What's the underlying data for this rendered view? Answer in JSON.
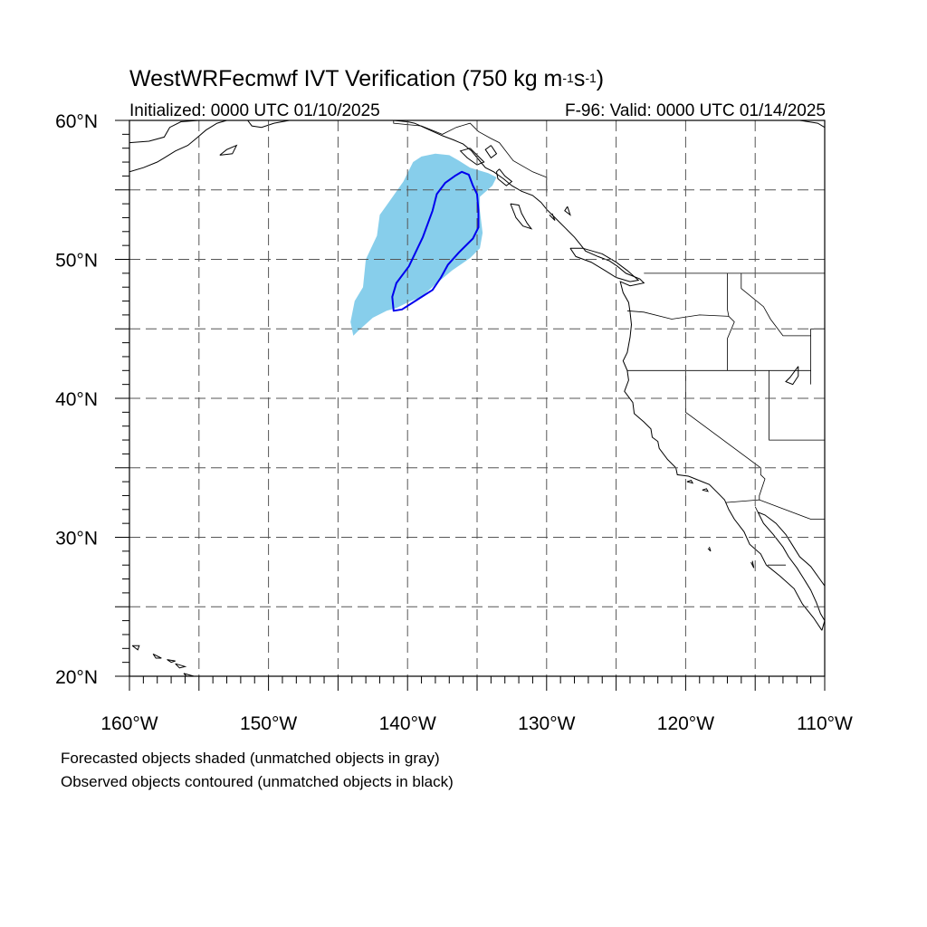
{
  "title": {
    "prefix": "WestWRFecmwf IVT Verification (750 kg m",
    "exp1": "-1",
    "mid": "s",
    "exp2": "-1",
    "suffix": ")"
  },
  "initialized": "Initialized: 0000 UTC 01/10/2025",
  "valid": "F-96: Valid: 0000 UTC 01/14/2025",
  "notes": {
    "forecast": "Forecasted objects shaded (unmatched objects in gray)",
    "observed": "Observed objects contoured (unmatched objects in black)"
  },
  "map": {
    "lon_range": [
      -160,
      -110
    ],
    "lat_range": [
      20,
      60
    ],
    "lon_ticks": [
      -160,
      -150,
      -140,
      -130,
      -120,
      -110
    ],
    "lon_tick_labels": [
      "160°W",
      "150°W",
      "140°W",
      "130°W",
      "120°W",
      "110°W"
    ],
    "lat_ticks": [
      20,
      30,
      40,
      50,
      60
    ],
    "lat_tick_labels": [
      "20°N",
      "30°N",
      "40°N",
      "50°N",
      "60°N"
    ],
    "gridline_lons": [
      -155,
      -150,
      -145,
      -140,
      -135,
      -130,
      -125,
      -120,
      -115
    ],
    "gridline_lats": [
      25,
      30,
      35,
      40,
      45,
      50,
      55
    ],
    "colors": {
      "forecast_fill": "#87ceeb",
      "observed_contour": "#0000ee",
      "coast": "#000000",
      "grid": "#555555"
    },
    "forecast_object": [
      [
        -143.9,
        44.5
      ],
      [
        -143.6,
        44.8
      ],
      [
        -142.5,
        45.8
      ],
      [
        -141.5,
        46.3
      ],
      [
        -140.8,
        46.5
      ],
      [
        -140.0,
        46.9
      ],
      [
        -139.0,
        47.3
      ],
      [
        -138.0,
        48.2
      ],
      [
        -136.8,
        49.2
      ],
      [
        -135.5,
        50.1
      ],
      [
        -134.8,
        50.8
      ],
      [
        -134.6,
        51.9
      ],
      [
        -134.8,
        53.5
      ],
      [
        -134.8,
        54.5
      ],
      [
        -133.9,
        55.3
      ],
      [
        -133.6,
        55.9
      ],
      [
        -134.2,
        56.2
      ],
      [
        -135.5,
        56.6
      ],
      [
        -136.3,
        57.1
      ],
      [
        -137.0,
        57.5
      ],
      [
        -138.0,
        57.6
      ],
      [
        -139.0,
        57.4
      ],
      [
        -139.6,
        57.0
      ],
      [
        -140.3,
        55.6
      ],
      [
        -141.0,
        54.6
      ],
      [
        -141.5,
        53.9
      ],
      [
        -142.0,
        53.2
      ],
      [
        -142.2,
        51.7
      ],
      [
        -143.0,
        50.0
      ],
      [
        -143.2,
        48.0
      ],
      [
        -143.8,
        47.0
      ],
      [
        -144.1,
        45.5
      ]
    ],
    "observed_object": [
      [
        -141.0,
        46.3
      ],
      [
        -141.1,
        47.3
      ],
      [
        -140.8,
        48.3
      ],
      [
        -139.9,
        49.5
      ],
      [
        -138.9,
        51.6
      ],
      [
        -138.2,
        53.5
      ],
      [
        -137.9,
        54.7
      ],
      [
        -137.3,
        55.5
      ],
      [
        -136.6,
        56.0
      ],
      [
        -136.1,
        56.3
      ],
      [
        -135.6,
        56.1
      ],
      [
        -135.3,
        55.3
      ],
      [
        -135.0,
        54.7
      ],
      [
        -134.9,
        53.5
      ],
      [
        -134.9,
        52.3
      ],
      [
        -135.3,
        51.5
      ],
      [
        -136.3,
        50.5
      ],
      [
        -137.1,
        49.6
      ],
      [
        -137.6,
        48.7
      ],
      [
        -138.2,
        47.8
      ],
      [
        -139.3,
        47.1
      ],
      [
        -140.4,
        46.4
      ]
    ],
    "coastline": [
      [
        [
          -160,
          58.4
        ],
        [
          -158.6,
          58.5
        ],
        [
          -157.5,
          58.8
        ],
        [
          -157.1,
          59.5
        ],
        [
          -156.3,
          59.9
        ],
        [
          -155.0,
          60.0
        ]
      ],
      [
        [
          -160,
          56.3
        ],
        [
          -159,
          56.6
        ],
        [
          -158,
          57.0
        ],
        [
          -157.5,
          57.3
        ],
        [
          -156.7,
          57.8
        ],
        [
          -155.8,
          58.2
        ],
        [
          -155.2,
          58.7
        ],
        [
          -154.5,
          59.3
        ],
        [
          -153.7,
          59.8
        ],
        [
          -153.0,
          60.0
        ]
      ],
      [
        [
          -153.5,
          57.5
        ],
        [
          -153.0,
          57.9
        ],
        [
          -152.3,
          58.2
        ],
        [
          -152.6,
          57.6
        ],
        [
          -153.5,
          57.5
        ]
      ],
      [
        [
          -151.5,
          60.0
        ],
        [
          -151.2,
          59.6
        ],
        [
          -150.5,
          59.5
        ],
        [
          -149.6,
          59.8
        ],
        [
          -148.5,
          60.0
        ]
      ],
      [
        [
          -146.5,
          60.0
        ],
        [
          -145.5,
          60.0
        ]
      ],
      [
        [
          -142.5,
          60.0
        ],
        [
          -141.0,
          60.0
        ],
        [
          -140.0,
          59.9
        ],
        [
          -139.5,
          59.8
        ],
        [
          -138.4,
          59.3
        ],
        [
          -137.5,
          58.9
        ],
        [
          -136.7,
          58.6
        ],
        [
          -136.0,
          58.3
        ],
        [
          -135.4,
          57.8
        ],
        [
          -134.9,
          57.2
        ],
        [
          -134.4,
          56.6
        ],
        [
          -133.8,
          56.3
        ],
        [
          -133.1,
          55.8
        ],
        [
          -132.5,
          55.3
        ],
        [
          -131.8,
          54.9
        ],
        [
          -131.0,
          54.6
        ],
        [
          -130.4,
          54.1
        ],
        [
          -130.0,
          53.6
        ],
        [
          -129.3,
          52.9
        ],
        [
          -128.6,
          52.2
        ],
        [
          -128.0,
          51.6
        ],
        [
          -127.6,
          51.1
        ],
        [
          -127.2,
          50.6
        ],
        [
          -126.3,
          50.2
        ],
        [
          -125.5,
          49.9
        ],
        [
          -124.9,
          49.5
        ],
        [
          -124.3,
          49.0
        ],
        [
          -123.3,
          48.6
        ],
        [
          -123.0,
          48.3
        ],
        [
          -124.0,
          48.1
        ],
        [
          -124.7,
          48.4
        ],
        [
          -124.5,
          47.6
        ],
        [
          -124.1,
          46.9
        ],
        [
          -124.0,
          46.2
        ],
        [
          -123.9,
          45.3
        ],
        [
          -124.0,
          44.4
        ],
        [
          -124.2,
          43.3
        ],
        [
          -124.5,
          42.7
        ],
        [
          -124.2,
          42.0
        ],
        [
          -124.1,
          41.3
        ],
        [
          -124.4,
          40.5
        ],
        [
          -123.8,
          39.7
        ],
        [
          -123.7,
          38.9
        ],
        [
          -123.0,
          38.3
        ],
        [
          -122.5,
          37.8
        ],
        [
          -122.4,
          37.2
        ],
        [
          -122.0,
          36.9
        ],
        [
          -121.9,
          36.4
        ],
        [
          -121.3,
          35.6
        ],
        [
          -120.7,
          35.0
        ],
        [
          -120.6,
          34.5
        ],
        [
          -119.8,
          34.4
        ],
        [
          -118.8,
          34.0
        ],
        [
          -118.3,
          33.8
        ],
        [
          -117.8,
          33.3
        ],
        [
          -117.2,
          32.7
        ],
        [
          -116.9,
          32.0
        ],
        [
          -116.5,
          31.3
        ],
        [
          -115.8,
          30.4
        ],
        [
          -115.4,
          29.5
        ],
        [
          -114.6,
          28.8
        ],
        [
          -114.2,
          28.0
        ],
        [
          -113.2,
          27.2
        ],
        [
          -112.2,
          26.3
        ],
        [
          -111.6,
          25.2
        ],
        [
          -110.8,
          24.2
        ],
        [
          -110.2,
          23.3
        ]
      ],
      [
        [
          -110.2,
          23.3
        ],
        [
          -110.0,
          24.0
        ]
      ],
      [
        [
          -114.8,
          31.8
        ],
        [
          -114.4,
          31.0
        ],
        [
          -113.7,
          30.2
        ],
        [
          -113.0,
          29.3
        ],
        [
          -112.6,
          28.6
        ],
        [
          -112.0,
          27.8
        ],
        [
          -111.5,
          27.0
        ],
        [
          -111.0,
          26.2
        ],
        [
          -110.6,
          25.3
        ],
        [
          -110.3,
          24.5
        ],
        [
          -110.0,
          24.0
        ]
      ],
      [
        [
          -110,
          26.5
        ],
        [
          -110.5,
          27.2
        ],
        [
          -111.0,
          27.9
        ],
        [
          -111.8,
          28.6
        ],
        [
          -112.3,
          29.4
        ],
        [
          -112.8,
          30.2
        ],
        [
          -113.5,
          31.0
        ],
        [
          -114.3,
          31.6
        ],
        [
          -114.8,
          31.8
        ]
      ],
      [
        [
          -128.3,
          50.8
        ],
        [
          -127.9,
          50.2
        ],
        [
          -126.8,
          49.8
        ],
        [
          -125.8,
          49.2
        ],
        [
          -125.0,
          48.7
        ],
        [
          -124.0,
          48.4
        ],
        [
          -123.4,
          48.5
        ],
        [
          -124.2,
          49.2
        ],
        [
          -125.0,
          49.8
        ],
        [
          -126.0,
          50.4
        ],
        [
          -127.4,
          50.8
        ],
        [
          -128.3,
          50.8
        ]
      ],
      [
        [
          -132.6,
          54.0
        ],
        [
          -132.0,
          53.9
        ],
        [
          -131.8,
          53.3
        ],
        [
          -131.4,
          52.6
        ],
        [
          -131.1,
          52.2
        ],
        [
          -131.7,
          52.4
        ],
        [
          -132.2,
          53.0
        ],
        [
          -132.6,
          54.0
        ]
      ],
      [
        [
          -133.4,
          56.5
        ],
        [
          -133.0,
          56.0
        ],
        [
          -132.5,
          55.6
        ],
        [
          -132.9,
          55.3
        ],
        [
          -133.5,
          55.8
        ],
        [
          -133.6,
          56.3
        ],
        [
          -133.4,
          56.5
        ]
      ],
      [
        [
          -135.5,
          58.0
        ],
        [
          -135.0,
          57.5
        ],
        [
          -134.5,
          57.0
        ],
        [
          -135.0,
          56.8
        ],
        [
          -135.7,
          57.3
        ],
        [
          -136.2,
          57.8
        ],
        [
          -135.5,
          58.0
        ]
      ],
      [
        [
          -134.0,
          58.2
        ],
        [
          -133.6,
          57.6
        ],
        [
          -134.0,
          57.3
        ],
        [
          -134.4,
          57.9
        ],
        [
          -134.0,
          58.2
        ]
      ],
      [
        [
          -111.8,
          60.0
        ],
        [
          -110.5,
          59.8
        ],
        [
          -110.0,
          59.5
        ]
      ],
      [
        [
          -118.8,
          33.4
        ],
        [
          -118.4,
          33.3
        ],
        [
          -118.5,
          33.5
        ],
        [
          -118.8,
          33.4
        ]
      ],
      [
        [
          -119.9,
          34.0
        ],
        [
          -119.5,
          33.9
        ],
        [
          -119.6,
          34.1
        ],
        [
          -119.9,
          34.0
        ]
      ],
      [
        [
          -118.4,
          29.2
        ],
        [
          -118.2,
          29.0
        ],
        [
          -118.3,
          29.3
        ]
      ],
      [
        [
          -115.3,
          28.2
        ],
        [
          -115.1,
          27.8
        ],
        [
          -115.2,
          28.3
        ]
      ],
      [
        [
          -111.9,
          42.3
        ],
        [
          -112.5,
          41.5
        ],
        [
          -112.8,
          41.2
        ],
        [
          -112.3,
          41.0
        ],
        [
          -111.9,
          41.6
        ],
        [
          -111.9,
          42.3
        ]
      ]
    ],
    "borders": [
      [
        [
          -141.0,
          60.0
        ],
        [
          -141.0,
          59.8
        ],
        [
          -139.0,
          59.6
        ],
        [
          -137.5,
          59.0
        ],
        [
          -136.5,
          59.5
        ],
        [
          -135.5,
          59.8
        ],
        [
          -134.9,
          59.2
        ],
        [
          -134.0,
          58.7
        ],
        [
          -133.4,
          58.4
        ],
        [
          -132.4,
          57.1
        ],
        [
          -131.0,
          56.3
        ],
        [
          -130.0,
          55.9
        ],
        [
          -130.0,
          54.8
        ]
      ],
      [
        [
          -123.0,
          49.0
        ],
        [
          -110,
          49.0
        ]
      ],
      [
        [
          -117.0,
          49.0
        ],
        [
          -117.0,
          46.4
        ],
        [
          -116.9,
          45.9
        ],
        [
          -116.5,
          45.5
        ],
        [
          -117.0,
          44.3
        ],
        [
          -117.0,
          42.0
        ]
      ],
      [
        [
          -124.2,
          46.3
        ],
        [
          -123.0,
          46.2
        ],
        [
          -121.0,
          45.7
        ],
        [
          -119.0,
          46.0
        ],
        [
          -116.9,
          45.9
        ]
      ],
      [
        [
          -124.2,
          42.0
        ],
        [
          -117.0,
          42.0
        ],
        [
          -114.0,
          42.0
        ],
        [
          -111.0,
          42.0
        ]
      ],
      [
        [
          -120.0,
          42.0
        ],
        [
          -120.0,
          39.0
        ],
        [
          -114.6,
          35.0
        ],
        [
          -114.6,
          34.5
        ],
        [
          -114.3,
          34.2
        ],
        [
          -114.7,
          33.0
        ],
        [
          -114.7,
          32.7
        ]
      ],
      [
        [
          -114.0,
          42.0
        ],
        [
          -114.0,
          37.0
        ],
        [
          -110,
          37.0
        ]
      ],
      [
        [
          -111.0,
          45.0
        ],
        [
          -111.0,
          44.5
        ],
        [
          -111.0,
          41.0
        ]
      ],
      [
        [
          -111.0,
          45.0
        ],
        [
          -110,
          45.0
        ]
      ],
      [
        [
          -116.0,
          49.0
        ],
        [
          -116.0,
          47.9
        ],
        [
          -114.4,
          46.6
        ],
        [
          -113.9,
          45.7
        ],
        [
          -113.0,
          44.5
        ],
        [
          -111.0,
          44.5
        ]
      ],
      [
        [
          -117.1,
          32.5
        ],
        [
          -114.7,
          32.7
        ],
        [
          -111.0,
          31.3
        ],
        [
          -110,
          31.3
        ]
      ],
      [
        [
          -115.0,
          32.2
        ],
        [
          -114.8,
          31.8
        ]
      ],
      [
        [
          -114.1,
          28.0
        ],
        [
          -112.8,
          28.0
        ]
      ]
    ],
    "islands": [
      [
        [
          -159.8,
          22.2
        ],
        [
          -159.3,
          22.2
        ],
        [
          -159.4,
          21.9
        ],
        [
          -159.8,
          22.2
        ]
      ],
      [
        [
          -158.3,
          21.6
        ],
        [
          -157.7,
          21.3
        ],
        [
          -158.1,
          21.3
        ],
        [
          -158.3,
          21.6
        ]
      ],
      [
        [
          -157.3,
          21.2
        ],
        [
          -156.7,
          21.1
        ],
        [
          -157.0,
          21.0
        ],
        [
          -157.3,
          21.2
        ]
      ],
      [
        [
          -156.7,
          20.9
        ],
        [
          -156.0,
          20.7
        ],
        [
          -156.4,
          20.6
        ],
        [
          -156.7,
          20.9
        ]
      ],
      [
        [
          -156.1,
          20.2
        ],
        [
          -155.0,
          19.9
        ],
        [
          -155.5,
          19.6
        ],
        [
          -156.1,
          20.2
        ]
      ],
      [
        [
          -128.5,
          53.8
        ],
        [
          -128.3,
          53.2
        ],
        [
          -128.7,
          53.5
        ],
        [
          -128.5,
          53.8
        ]
      ],
      [
        [
          -129.8,
          53.2
        ],
        [
          -129.4,
          52.8
        ],
        [
          -129.6,
          53.3
        ]
      ]
    ]
  }
}
